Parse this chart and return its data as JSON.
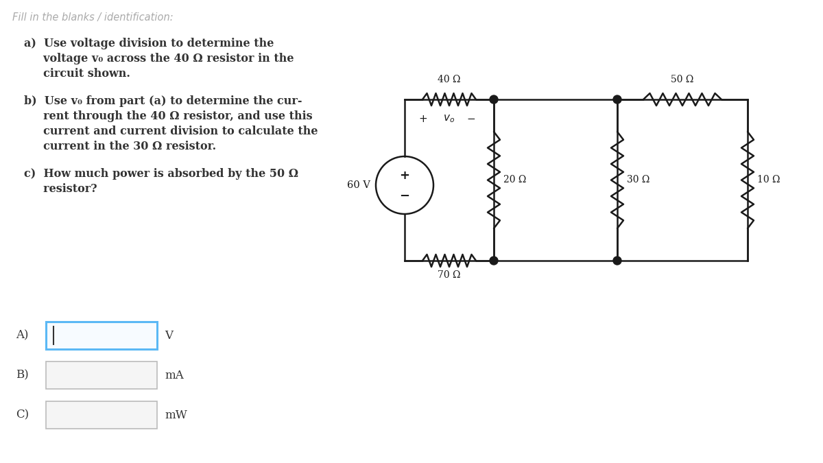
{
  "bg_color": "#ffffff",
  "title_text": "Fill in the blanks / identification:",
  "text_color": "#333333",
  "circuit_color": "#1a1a1a",
  "label_A": "A)",
  "label_B": "B)",
  "label_C": "C)",
  "unit_A": "V",
  "unit_B": "mA",
  "unit_C": "mW",
  "box_color_A": "#5bb8f5",
  "box_color_BC": "#cccccc",
  "box_fill_A": "#f7fbff",
  "box_fill_BC": "#f5f5f5",
  "question_a": [
    "a)  Use voltage division to determine the",
    "     voltage v₀ across the 40 Ω resistor in the",
    "     circuit shown."
  ],
  "question_b": [
    "b)  Use v₀ from part (a) to determine the cur-",
    "     rent through the 40 Ω resistor, and use this",
    "     current and current division to calculate the",
    "     current in the 30 Ω resistor."
  ],
  "question_c": [
    "c)  How much power is absorbed by the 50 Ω",
    "     resistor?"
  ],
  "vs_label": "60 V",
  "r_labels": [
    "40 Ω",
    "50 Ω",
    "70 Ω",
    "20 Ω",
    "30 Ω",
    "10 Ω"
  ],
  "vo_plus": "+",
  "vo_label": "v₀",
  "vo_minus": "−"
}
